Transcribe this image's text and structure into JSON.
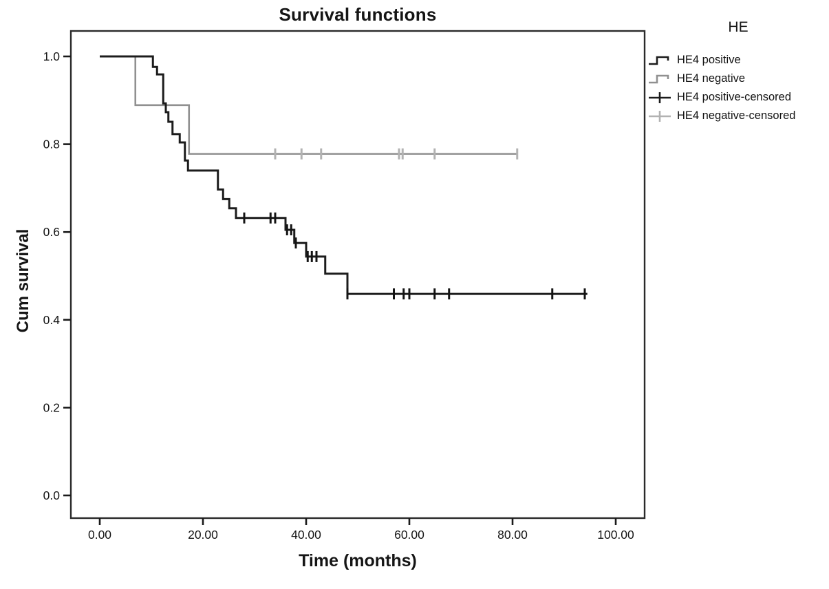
{
  "title": "Survival functions",
  "axes": {
    "x_label": "Time (months)",
    "y_label": "Cum survival",
    "x_ticks": [
      {
        "value": 0,
        "label": "0.00"
      },
      {
        "value": 20,
        "label": "20.00"
      },
      {
        "value": 40,
        "label": "40.00"
      },
      {
        "value": 60,
        "label": "60.00"
      },
      {
        "value": 80,
        "label": "80.00"
      },
      {
        "value": 100,
        "label": "100.00"
      }
    ],
    "y_ticks": [
      {
        "value": 1.0,
        "label": "1.0"
      },
      {
        "value": 0.8,
        "label": "0.8"
      },
      {
        "value": 0.6,
        "label": "0.6"
      },
      {
        "value": 0.4,
        "label": "0.4"
      },
      {
        "value": 0.2,
        "label": "0.2"
      },
      {
        "value": 0.0,
        "label": "0.0"
      }
    ]
  },
  "legend": {
    "title": "HE",
    "items": [
      {
        "label": "HE4 positive",
        "symbol": "step",
        "color": "#1c1c1c"
      },
      {
        "label": "HE4 negative",
        "symbol": "step",
        "color": "#909090"
      },
      {
        "label": "HE4 positive-censored",
        "symbol": "censor",
        "color": "#1c1c1c"
      },
      {
        "label": "HE4 negative-censored",
        "symbol": "censor",
        "color": "#b2b2b2"
      }
    ]
  },
  "colors": {
    "positive_line": "#1c1c1c",
    "positive_censor": "#141414",
    "negative_line": "#909090",
    "negative_censor": "#b2b2b2",
    "frame": "#2a2a2a",
    "text": "#151515"
  },
  "chart_data": {
    "type": "line",
    "subtype": "kaplan-meier-step",
    "title": "Survival functions",
    "xlabel": "Time (months)",
    "ylabel": "Cum survival",
    "xlim": [
      0,
      100
    ],
    "ylim": [
      0.0,
      1.0
    ],
    "grid": false,
    "legend_position": "right-outside",
    "legend_title": "HE",
    "series": [
      {
        "name": "HE4 positive",
        "color": "#1c1c1c",
        "censor_color": "#141414",
        "steps": [
          [
            0,
            1.0
          ],
          [
            10.3,
            0.976
          ],
          [
            11.1,
            0.959
          ],
          [
            12.3,
            0.893
          ],
          [
            12.8,
            0.873
          ],
          [
            13.3,
            0.851
          ],
          [
            14.1,
            0.823
          ],
          [
            15.5,
            0.804
          ],
          [
            16.5,
            0.763
          ],
          [
            17.1,
            0.74
          ],
          [
            22.9,
            0.697
          ],
          [
            23.9,
            0.675
          ],
          [
            25.1,
            0.654
          ],
          [
            26.4,
            0.632
          ],
          [
            36.0,
            0.605
          ],
          [
            37.7,
            0.575
          ],
          [
            40.0,
            0.544
          ],
          [
            43.7,
            0.505
          ],
          [
            48.0,
            0.459
          ]
        ],
        "end_time": 94.5,
        "censored": [
          [
            28.0,
            0.632
          ],
          [
            33.1,
            0.632
          ],
          [
            34.0,
            0.632
          ],
          [
            36.3,
            0.605
          ],
          [
            37.1,
            0.605
          ],
          [
            38.0,
            0.575
          ],
          [
            40.3,
            0.544
          ],
          [
            41.1,
            0.544
          ],
          [
            42.0,
            0.544
          ],
          [
            48.0,
            0.459
          ],
          [
            57.0,
            0.459
          ],
          [
            58.9,
            0.459
          ],
          [
            60.0,
            0.459
          ],
          [
            64.9,
            0.459
          ],
          [
            67.7,
            0.459
          ],
          [
            87.7,
            0.459
          ],
          [
            94.0,
            0.459
          ]
        ]
      },
      {
        "name": "HE4 negative",
        "color": "#909090",
        "censor_color": "#b2b2b2",
        "steps": [
          [
            0,
            1.0
          ],
          [
            6.9,
            0.889
          ],
          [
            17.3,
            0.778
          ]
        ],
        "end_time": 81.0,
        "censored": [
          [
            34.0,
            0.778
          ],
          [
            39.1,
            0.778
          ],
          [
            42.9,
            0.778
          ],
          [
            58.0,
            0.778
          ],
          [
            58.7,
            0.778
          ],
          [
            64.9,
            0.778
          ],
          [
            80.9,
            0.778
          ]
        ]
      }
    ]
  }
}
